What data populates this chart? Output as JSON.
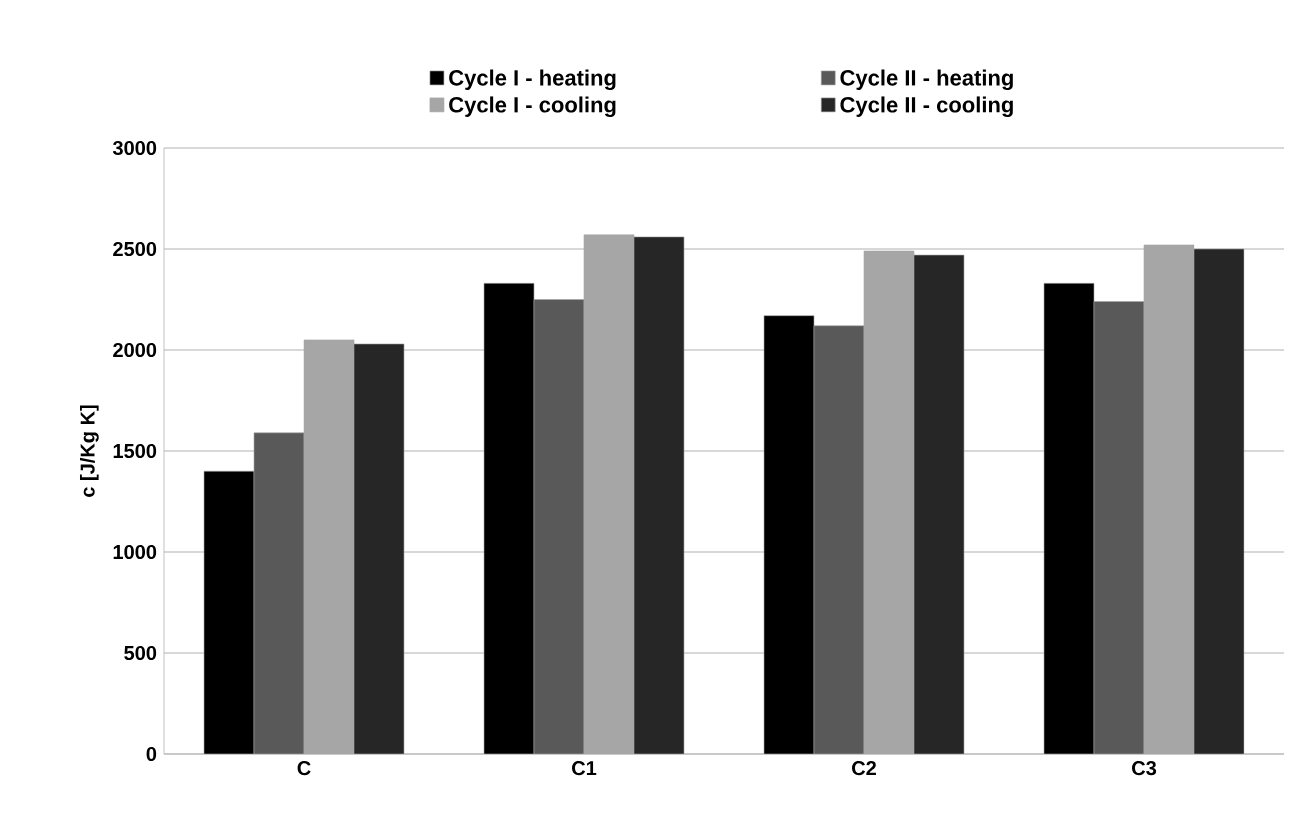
{
  "chart_data": {
    "type": "bar",
    "ylabel": "c [J/Kg K]",
    "categories": [
      "C",
      "C1",
      "C2",
      "C3"
    ],
    "series": [
      {
        "name": "Cycle I - heating",
        "color": "#000000",
        "values": [
          1400,
          2330,
          2170,
          2330
        ]
      },
      {
        "name": "Cycle II - heating",
        "color": "#595959",
        "values": [
          1590,
          2250,
          2120,
          2240
        ]
      },
      {
        "name": "Cycle I - cooling",
        "color": "#a6a6a6",
        "values": [
          2050,
          2570,
          2490,
          2520
        ]
      },
      {
        "name": "Cycle II - cooling",
        "color": "#262626",
        "values": [
          2030,
          2560,
          2470,
          2500
        ]
      }
    ],
    "ylim": [
      0,
      3000
    ],
    "yticks": [
      0,
      500,
      1000,
      1500,
      2000,
      2500,
      3000
    ],
    "grid": "y",
    "legend": "top"
  }
}
